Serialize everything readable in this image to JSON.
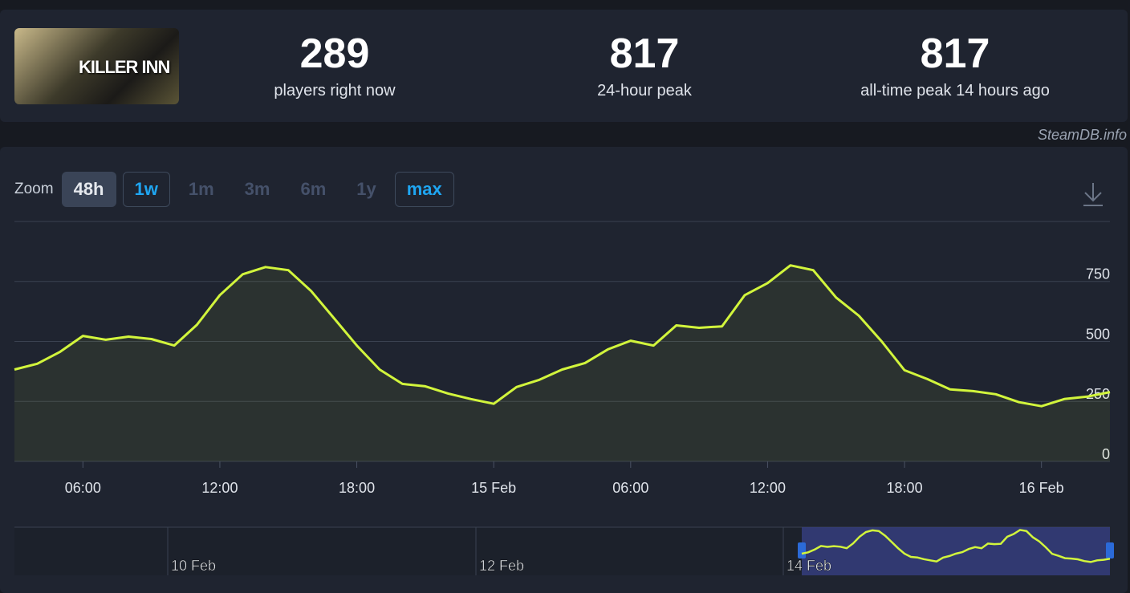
{
  "header": {
    "game_logo": "KILLER INN",
    "stats": [
      {
        "value": 289,
        "label": "players right now"
      },
      {
        "value": 817,
        "label": "24-hour peak"
      },
      {
        "value": 817,
        "label": "all-time peak 14 hours ago"
      }
    ]
  },
  "watermark": "SteamDB.info",
  "zoom": {
    "label": "Zoom",
    "buttons": [
      "48h",
      "1w",
      "1m",
      "3m",
      "6m",
      "1y",
      "max"
    ]
  },
  "chart_data": {
    "type": "line",
    "x": [
      3,
      4,
      5,
      6,
      7,
      8,
      9,
      10,
      11,
      12,
      13,
      14,
      15,
      16,
      17,
      18,
      19,
      20,
      21,
      22,
      23,
      24,
      25,
      26,
      27,
      28,
      29,
      30,
      31,
      32,
      33,
      34,
      35,
      36,
      37,
      38,
      39,
      40,
      41,
      42,
      43,
      44,
      45,
      46,
      47,
      48,
      49,
      50,
      51
    ],
    "series": [
      {
        "color": "#d2f53c",
        "values": [
          383,
          407,
          457,
          523,
          507,
          520,
          510,
          483,
          570,
          693,
          780,
          810,
          797,
          710,
          597,
          483,
          383,
          323,
          313,
          283,
          260,
          240,
          310,
          340,
          383,
          410,
          467,
          503,
          483,
          567,
          557,
          563,
          693,
          743,
          817,
          797,
          683,
          607,
          500,
          380,
          343,
          300,
          293,
          280,
          247,
          230,
          260,
          270,
          289
        ]
      }
    ],
    "xlim": [
      3,
      51
    ],
    "xticks": [
      {
        "value": 6,
        "label": "06:00"
      },
      {
        "value": 12,
        "label": "12:00"
      },
      {
        "value": 18,
        "label": "18:00"
      },
      {
        "value": 24,
        "label": "15 Feb"
      },
      {
        "value": 30,
        "label": "06:00"
      },
      {
        "value": 36,
        "label": "12:00"
      },
      {
        "value": 42,
        "label": "18:00"
      },
      {
        "value": 48,
        "label": "16 Feb"
      }
    ],
    "ylim": [
      0,
      1000
    ],
    "yticks": [
      0,
      250,
      500,
      750
    ],
    "grid": true,
    "navigator_labels": [
      "10 Feb",
      "12 Feb",
      "14 Feb"
    ]
  }
}
